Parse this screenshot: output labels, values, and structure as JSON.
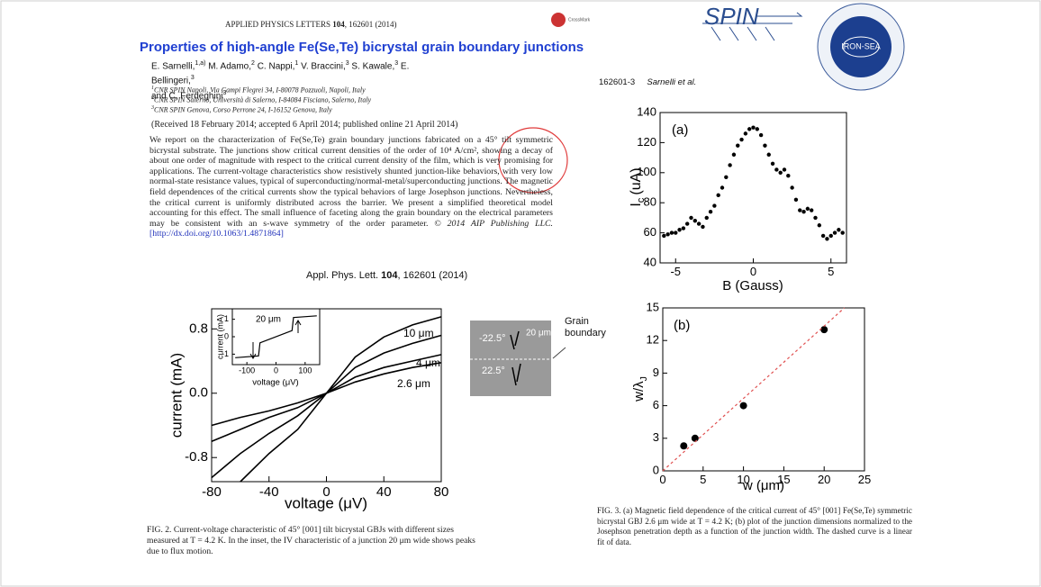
{
  "header": {
    "journal": "APPLIED PHYSICS LETTERS",
    "volume": "104",
    "article": "162601 (2014)",
    "crossmark": "CrossMark",
    "logo_left": "SPIN",
    "logo_right": "IRON-SEA"
  },
  "paper": {
    "title": "Properties of high-angle Fe(Se,Te) bicrystal grain boundary junctions",
    "authors": [
      {
        "name": "E. Sarnelli,",
        "aff": "1,a)"
      },
      {
        "name": "M. Adamo,",
        "aff": "2"
      },
      {
        "name": "C. Nappi,",
        "aff": "1"
      },
      {
        "name": "V. Braccini,",
        "aff": "3"
      },
      {
        "name": "S. Kawale,",
        "aff": "3"
      },
      {
        "name": "E. Bellingeri,",
        "aff": "3"
      },
      {
        "name": "and C. Ferdeghini",
        "aff": "3"
      }
    ],
    "affiliations": [
      {
        "num": "1",
        "text": "CNR SPIN Napoli, Via Campi Flegrei 34, I-80078 Pozzuoli, Napoli, Italy"
      },
      {
        "num": "2",
        "text": "CNR SPIN Salerno, Università di Salerno, I-84084 Fisciano, Salerno, Italy"
      },
      {
        "num": "3",
        "text": "CNR SPIN Genova, Corso Perrone 24, I-16152 Genova, Italy"
      }
    ],
    "received": "(Received 18 February 2014; accepted 6 April 2014; published online 21 April 2014)",
    "abstract": "We report on the characterization of Fe(Se,Te) grain boundary junctions fabricated on a 45° tilt symmetric bicrystal substrate. The junctions show critical current densities of the order of 10⁴ A/cm², showing a decay of about one order of magnitude with respect to the critical current density of the film, which is very promising for applications. The current-voltage characteristics show resistively shunted junction-like behaviors, with very low normal-state resistance values, typical of superconducting/normal-metal/superconducting junctions. The magnetic field dependences of the critical currents show the typical behaviors of large Josephson junctions. Nevertheless, the critical current is uniformly distributed across the barrier. We present a simplified theoretical model accounting for this effect. The small influence of faceting along the grain boundary on the electrical parameters may be consistent with an s-wave symmetry of the order parameter.",
    "copyright": "© 2014 AIP Publishing LLC.",
    "doi": "[http://dx.doi.org/10.1063/1.4871864]",
    "citation": {
      "journal": "Appl. Phys. Lett.",
      "volume": "104",
      "article": "162601 (2014)"
    },
    "page_header": {
      "page": "162601-3",
      "authors": "Sarnelli et al."
    },
    "image_labels": {
      "angle_top": "-22.5°",
      "width": "20 μm",
      "angle_bottom": "22.5°",
      "boundary": "Grain boundary"
    },
    "fig2_caption": "FIG. 2. Current-voltage characteristic of 45° [001] tilt bicrystal GBJs with different sizes measured at T = 4.2 K. In the inset, the IV characteristic of a junction 20 μm wide shows peaks due to flux motion.",
    "fig3_caption": "FIG. 3. (a) Magnetic field dependence of the critical current of 45° [001] Fe(Se,Te) symmetric bicrystal GBJ 2.6 μm wide at T = 4.2 K; (b) plot of the junction dimensions normalized to the Josephson penetration depth as a function of the junction width. The dashed curve is a linear fit of data."
  },
  "chart_data": [
    {
      "type": "line",
      "x_label": "voltage (μV)",
      "y_label": "current (mA)",
      "x": [
        -80,
        -60,
        -40,
        -20,
        0,
        20,
        40,
        60,
        80
      ],
      "xlim": [
        -80,
        80
      ],
      "xticks": [
        -80,
        -40,
        0,
        40,
        80
      ],
      "ylim": [
        -1.1,
        1.05
      ],
      "yticks": [
        -0.8,
        {
          "value": 0,
          "label": "0.0"
        },
        0.8
      ],
      "series": [
        {
          "name": "20 μm",
          "color": "#000000",
          "values": [
            null,
            -1.1,
            -0.75,
            -0.45,
            0,
            0.45,
            0.7,
            0.85,
            0.95
          ]
        },
        {
          "name": "10 μm",
          "color": "#000000",
          "values": [
            -1.05,
            -0.75,
            -0.5,
            -0.28,
            0,
            0.32,
            0.5,
            0.62,
            0.72
          ]
        },
        {
          "name": "4 μm",
          "color": "#000000",
          "values": [
            -0.6,
            -0.45,
            -0.3,
            -0.18,
            0,
            0.2,
            0.32,
            0.4,
            0.48
          ]
        },
        {
          "name": "2.6 μm",
          "color": "#000000",
          "values": [
            -0.4,
            -0.3,
            -0.22,
            -0.12,
            0,
            0.14,
            0.24,
            0.32,
            0.38
          ]
        }
      ]
    },
    {
      "type": "line",
      "x_label": "voltage (μV)",
      "y_label": "current (mA)",
      "label": "20 μm",
      "xlim": [
        -150,
        150
      ],
      "xticks": [
        -100,
        0,
        100
      ],
      "ylim": [
        -1.6,
        1.6
      ],
      "yticks": [
        -1,
        0,
        1
      ],
      "series": [
        {
          "color": "#000000",
          "x": [
            -140,
            -60,
            -55,
            55,
            60,
            140
          ],
          "values": [
            -1.2,
            -1.1,
            -0.35,
            0.35,
            1.1,
            1.2
          ]
        }
      ]
    },
    {
      "type": "scatter",
      "panel": "(a)",
      "x_label": "B (Gauss)",
      "y_label": [
        "I",
        "c",
        "(uA)"
      ],
      "xlim": [
        -6,
        6
      ],
      "xticks": [
        -5,
        0,
        5
      ],
      "ylim": [
        40,
        140
      ],
      "yticks": [
        40,
        60,
        80,
        100,
        120,
        140
      ],
      "series": [
        {
          "color": "#000000",
          "x": [
            -5.75,
            -5.5,
            -5.25,
            -5,
            -4.75,
            -4.5,
            -4.25,
            -4,
            -3.75,
            -3.5,
            -3.25,
            -3,
            -2.75,
            -2.5,
            -2.25,
            -2,
            -1.75,
            -1.5,
            -1.25,
            -1,
            -0.75,
            -0.5,
            -0.25,
            0,
            0.25,
            0.5,
            0.75,
            1,
            1.25,
            1.5,
            1.75,
            2,
            2.25,
            2.5,
            2.75,
            3,
            3.25,
            3.5,
            3.75,
            4,
            4.25,
            4.5,
            4.75,
            5,
            5.25,
            5.5,
            5.75
          ],
          "values": [
            58,
            59,
            60,
            60,
            62,
            63,
            66,
            70,
            68,
            66,
            64,
            70,
            74,
            78,
            85,
            90,
            97,
            105,
            112,
            118,
            122,
            126,
            129,
            130,
            129,
            125,
            118,
            112,
            106,
            102,
            100,
            102,
            98,
            90,
            82,
            75,
            74,
            76,
            75,
            70,
            65,
            58,
            56,
            58,
            60,
            62,
            60
          ]
        }
      ]
    },
    {
      "type": "scatter",
      "panel": "(b)",
      "x_label": "w (μm)",
      "y_label": [
        "w/λ",
        "J"
      ],
      "xlim": [
        0,
        25
      ],
      "xticks": [
        0,
        5,
        10,
        15,
        20,
        25
      ],
      "ylim": [
        0,
        15
      ],
      "yticks": [
        0,
        3,
        6,
        9,
        12,
        15
      ],
      "series": [
        {
          "color": "#000000",
          "x": [
            2.6,
            4,
            10,
            20
          ],
          "values": [
            2.3,
            3,
            6,
            13
          ]
        },
        {
          "type": "line",
          "dash": true,
          "color": "#e05050",
          "x": [
            0,
            22.5
          ],
          "values": [
            0,
            15
          ]
        }
      ]
    }
  ]
}
